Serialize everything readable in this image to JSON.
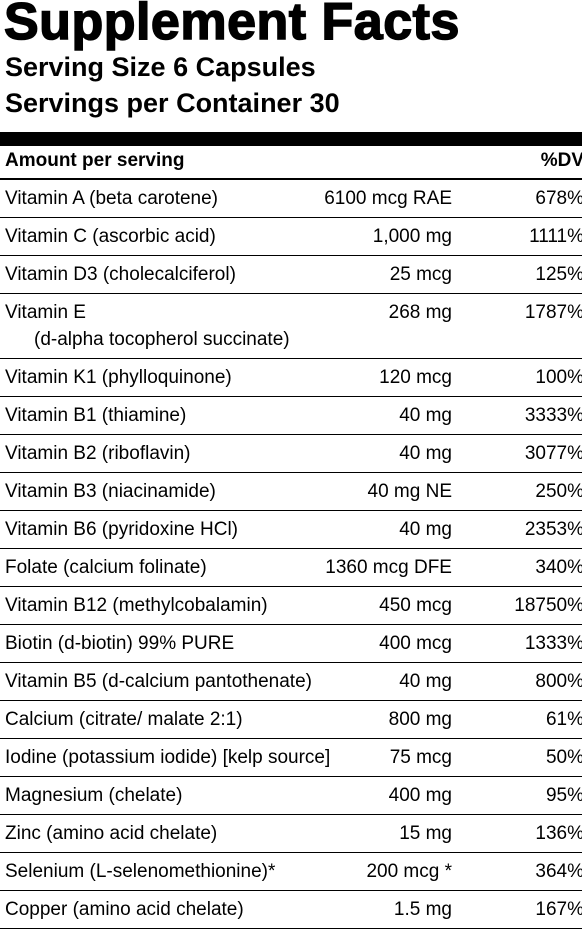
{
  "header": {
    "title": "Supplement Facts",
    "serving_size": "Serving Size  6 Capsules",
    "servings_per_container": "Servings per Container  30"
  },
  "table": {
    "columns": [
      "Amount per serving",
      "%DV"
    ],
    "rows": [
      {
        "name": "Vitamin A (beta carotene)",
        "amount": "6100 mcg RAE",
        "dv": "678%"
      },
      {
        "name": "Vitamin C (ascorbic acid)",
        "amount": "1,000 mg",
        "dv": "1111%"
      },
      {
        "name": "Vitamin D3 (cholecalciferol)",
        "amount": "25 mcg",
        "dv": "125%"
      },
      {
        "name": "Vitamin E",
        "sub": "(d-alpha tocopherol succinate)",
        "amount": "268 mg",
        "dv": "1787%"
      },
      {
        "name": "Vitamin K1 (phylloquinone)",
        "amount": "120 mcg",
        "dv": "100%"
      },
      {
        "name": "Vitamin B1 (thiamine)",
        "amount": "40 mg",
        "dv": "3333%"
      },
      {
        "name": "Vitamin B2 (riboflavin)",
        "amount": "40 mg",
        "dv": "3077%"
      },
      {
        "name": "Vitamin B3 (niacinamide)",
        "amount": "40 mg NE",
        "dv": "250%"
      },
      {
        "name": "Vitamin B6 (pyridoxine HCl)",
        "amount": "40 mg",
        "dv": "2353%"
      },
      {
        "name": "Folate (calcium folinate)",
        "amount": "1360 mcg DFE",
        "dv": "340%"
      },
      {
        "name": "Vitamin B12 (methylcobalamin)",
        "amount": "450 mcg",
        "dv": "18750%"
      },
      {
        "name": "Biotin (d-biotin) 99% PURE",
        "amount": "400 mcg",
        "dv": "1333%"
      },
      {
        "name": "Vitamin B5 (d-calcium pantothenate)",
        "amount": "40 mg",
        "dv": "800%"
      },
      {
        "name": "Calcium (citrate/ malate 2:1)",
        "amount": "800 mg",
        "dv": "61%"
      },
      {
        "name": "Iodine (potassium iodide) [kelp source]",
        "amount": "75 mcg",
        "dv": "50%"
      },
      {
        "name": "Magnesium (chelate)",
        "amount": "400 mg",
        "dv": "95%"
      },
      {
        "name": "Zinc (amino acid chelate)",
        "amount": "15 mg",
        "dv": "136%"
      },
      {
        "name": "Selenium (L-selenomethionine)*",
        "amount": "200 mcg *",
        "dv": "364%"
      },
      {
        "name": "Copper (amino acid chelate)",
        "amount": "1.5 mg",
        "dv": "167%"
      }
    ]
  }
}
